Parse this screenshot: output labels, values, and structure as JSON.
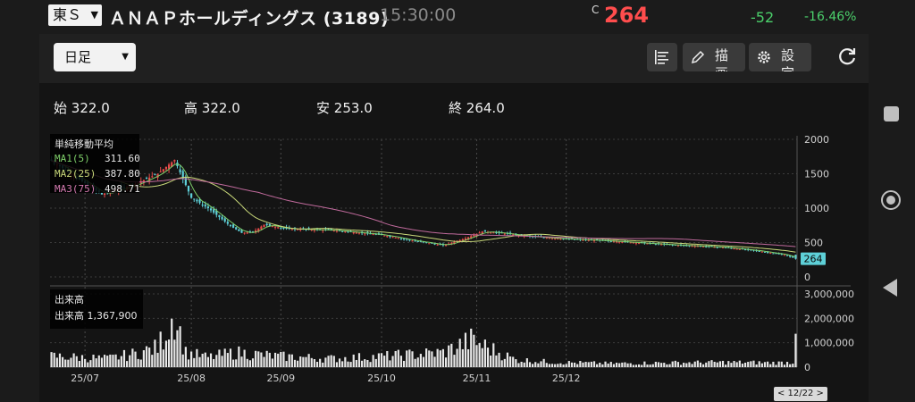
{
  "header": {
    "market": "東Ｓ",
    "name": "ＡＮＡＰホールディングス (3189)",
    "time": "15:30:00",
    "price_mark": "C",
    "price": "264",
    "change": "-52",
    "change_pct": "-16.46%"
  },
  "toolbar": {
    "period": "日足",
    "draw_label": "描画",
    "settings_label": "設定"
  },
  "ohlc": {
    "open_label": "始",
    "open": "322.0",
    "high_label": "高",
    "high": "322.0",
    "low_label": "安",
    "low": "253.0",
    "close_label": "終",
    "close": "264.0"
  },
  "legend": {
    "title": "単純移動平均",
    "ma1_label": "MA1(5)",
    "ma1": "311.60",
    "ma2_label": "MA2(25)",
    "ma2": "387.80",
    "ma3_label": "MA3(75)",
    "ma3": "498.71"
  },
  "volume_legend": {
    "title": "出来高",
    "label": "出来高",
    "value": "1,367,900"
  },
  "colors": {
    "up": "#e84a4a",
    "down": "#5ed0d8",
    "ma1": "#7fd06a",
    "ma2": "#c9d97a",
    "ma3": "#c06a9c",
    "volume": "#e8e8e8"
  },
  "date_badge": "< 12/22 >",
  "chart_data": {
    "type": "candlestick",
    "price_axis": {
      "ticks": [
        "2000",
        "1500",
        "1000",
        "500",
        "0"
      ],
      "ylim": [
        0,
        2000
      ]
    },
    "volume_axis": {
      "ticks": [
        "3,000,000",
        "2,000,000",
        "1,000,000",
        "0"
      ],
      "ylim": [
        0,
        3000000
      ]
    },
    "x_ticks": [
      "25/07",
      "25/08",
      "25/09",
      "25/10",
      "25/11",
      "25/12"
    ],
    "last_price_label": "264",
    "anchors": [
      [
        0,
        1690
      ],
      [
        18,
        1200
      ],
      [
        30,
        1350
      ],
      [
        38,
        1500
      ],
      [
        44,
        1700
      ],
      [
        46,
        1520
      ],
      [
        50,
        1150
      ],
      [
        56,
        1000
      ],
      [
        64,
        740
      ],
      [
        68,
        640
      ],
      [
        72,
        650
      ],
      [
        76,
        760
      ],
      [
        84,
        700
      ],
      [
        100,
        680
      ],
      [
        118,
        610
      ],
      [
        130,
        520
      ],
      [
        140,
        460
      ],
      [
        148,
        560
      ],
      [
        154,
        660
      ],
      [
        160,
        640
      ],
      [
        168,
        600
      ],
      [
        180,
        560
      ],
      [
        200,
        520
      ],
      [
        220,
        470
      ],
      [
        240,
        430
      ],
      [
        252,
        380
      ],
      [
        262,
        320
      ],
      [
        266,
        264
      ]
    ],
    "volume_anchors": [
      [
        0,
        450000
      ],
      [
        20,
        350000
      ],
      [
        30,
        550000
      ],
      [
        38,
        800000
      ],
      [
        44,
        2200000
      ],
      [
        48,
        600000
      ],
      [
        56,
        400000
      ],
      [
        66,
        600000
      ],
      [
        80,
        450000
      ],
      [
        100,
        350000
      ],
      [
        120,
        450000
      ],
      [
        140,
        600000
      ],
      [
        150,
        1100000
      ],
      [
        158,
        700000
      ],
      [
        166,
        300000
      ],
      [
        180,
        200000
      ],
      [
        200,
        150000
      ],
      [
        220,
        180000
      ],
      [
        240,
        200000
      ],
      [
        260,
        180000
      ],
      [
        265,
        200000
      ],
      [
        266,
        1367900
      ]
    ],
    "ma_stats": {
      "ma1": 311.6,
      "ma2": 387.8,
      "ma3": 498.71
    }
  }
}
